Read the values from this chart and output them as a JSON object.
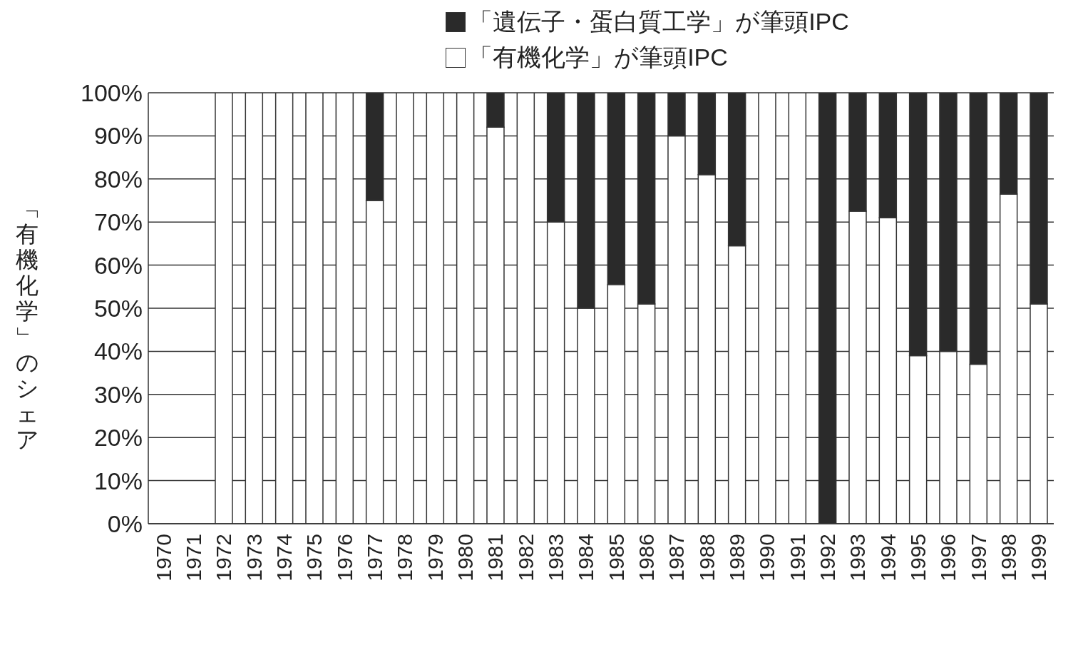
{
  "chart_data": {
    "type": "bar",
    "stacked": true,
    "ylabel": "「有機化学」のシェア",
    "categories": [
      "1970",
      "1971",
      "1972",
      "1973",
      "1974",
      "1975",
      "1976",
      "1977",
      "1978",
      "1979",
      "1980",
      "1981",
      "1982",
      "1983",
      "1984",
      "1985",
      "1986",
      "1987",
      "1988",
      "1989",
      "1990",
      "1991",
      "1992",
      "1993",
      "1994",
      "1995",
      "1996",
      "1997",
      "1998",
      "1999"
    ],
    "series": [
      {
        "name": "「有機化学」が筆頭IPC",
        "color": "#ffffff",
        "values": [
          null,
          null,
          100,
          100,
          100,
          100,
          100,
          75,
          100,
          100,
          100,
          92,
          100,
          70,
          50,
          55.5,
          51,
          90,
          81,
          64.5,
          100,
          100,
          0,
          72.5,
          71,
          39,
          40,
          37,
          76.5,
          51
        ]
      },
      {
        "name": "「遺伝子・蛋白質工学」が筆頭IPC",
        "color": "#2a2a2a",
        "values": [
          null,
          null,
          0,
          0,
          0,
          0,
          0,
          25,
          0,
          0,
          0,
          8,
          0,
          30,
          50,
          44.5,
          49,
          10,
          19,
          35.5,
          0,
          0,
          100,
          27.5,
          29,
          61,
          60,
          63,
          23.5,
          49
        ]
      }
    ],
    "ylim": [
      0,
      100
    ],
    "yticks": [
      {
        "value": 0,
        "label": "0%"
      },
      {
        "value": 10,
        "label": "10%"
      },
      {
        "value": 20,
        "label": "20%"
      },
      {
        "value": 30,
        "label": "30%"
      },
      {
        "value": 40,
        "label": "40%"
      },
      {
        "value": 50,
        "label": "50%"
      },
      {
        "value": 60,
        "label": "60%"
      },
      {
        "value": 70,
        "label": "70%"
      },
      {
        "value": 80,
        "label": "80%"
      },
      {
        "value": 90,
        "label": "90%"
      },
      {
        "value": 100,
        "label": "100%"
      }
    ],
    "grid": "y",
    "legend": "top"
  }
}
